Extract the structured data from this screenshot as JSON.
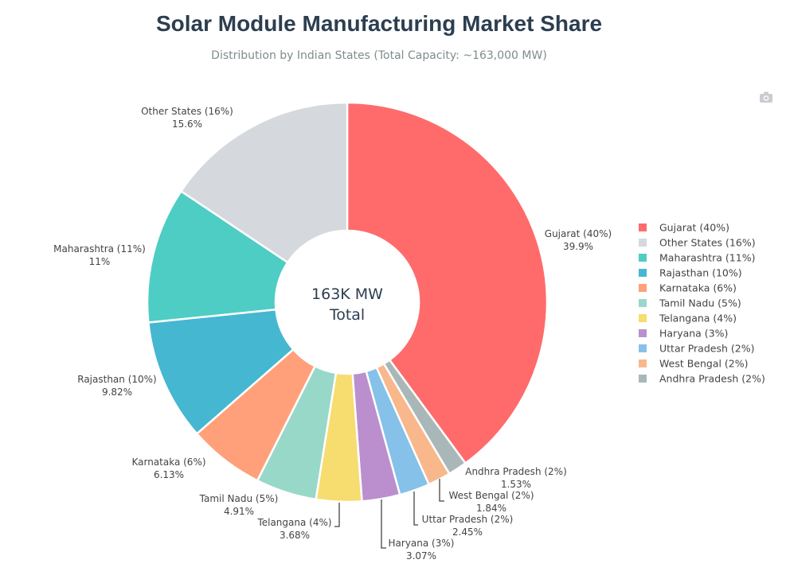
{
  "chart_data": {
    "type": "pie",
    "hole": true,
    "title": "Solar Module Manufacturing Market Share",
    "subtitle": "Distribution by Indian States (Total Capacity: ~163,000 MW)",
    "center_text": [
      "163K MW",
      "Total"
    ],
    "legend_position": "right",
    "slices": [
      {
        "label": "Gujarat (40%)",
        "value": 39.9,
        "text": "39.9%",
        "color": "#ff6b6b"
      },
      {
        "label": "Andhra Pradesh (2%)",
        "value": 1.53,
        "text": "1.53%",
        "color": "#aab7b8"
      },
      {
        "label": "West Bengal (2%)",
        "value": 1.84,
        "text": "1.84%",
        "color": "#f8b88b"
      },
      {
        "label": "Uttar Pradesh (2%)",
        "value": 2.45,
        "text": "2.45%",
        "color": "#85c1e9"
      },
      {
        "label": "Haryana (3%)",
        "value": 3.07,
        "text": "3.07%",
        "color": "#bb8fce"
      },
      {
        "label": "Telangana (4%)",
        "value": 3.68,
        "text": "3.68%",
        "color": "#f7dc6f"
      },
      {
        "label": "Tamil Nadu (5%)",
        "value": 4.91,
        "text": "4.91%",
        "color": "#98d8c8"
      },
      {
        "label": "Karnataka (6%)",
        "value": 6.13,
        "text": "6.13%",
        "color": "#ffa07a"
      },
      {
        "label": "Rajasthan (10%)",
        "value": 9.82,
        "text": "9.82%",
        "color": "#45b7d1"
      },
      {
        "label": "Maharashtra (11%)",
        "value": 11,
        "text": "11%",
        "color": "#4ecdc4"
      },
      {
        "label": "Other States (16%)",
        "value": 15.6,
        "text": "15.6%",
        "color": "#d5d8dc"
      }
    ],
    "legend_order": [
      "Gujarat (40%)",
      "Other States (16%)",
      "Maharashtra (11%)",
      "Rajasthan (10%)",
      "Karnataka (6%)",
      "Tamil Nadu (5%)",
      "Telangana (4%)",
      "Haryana (3%)",
      "Uttar Pradesh (2%)",
      "West Bengal (2%)",
      "Andhra Pradesh (2%)"
    ]
  },
  "toolbar": {
    "camera_icon": "camera-icon"
  }
}
